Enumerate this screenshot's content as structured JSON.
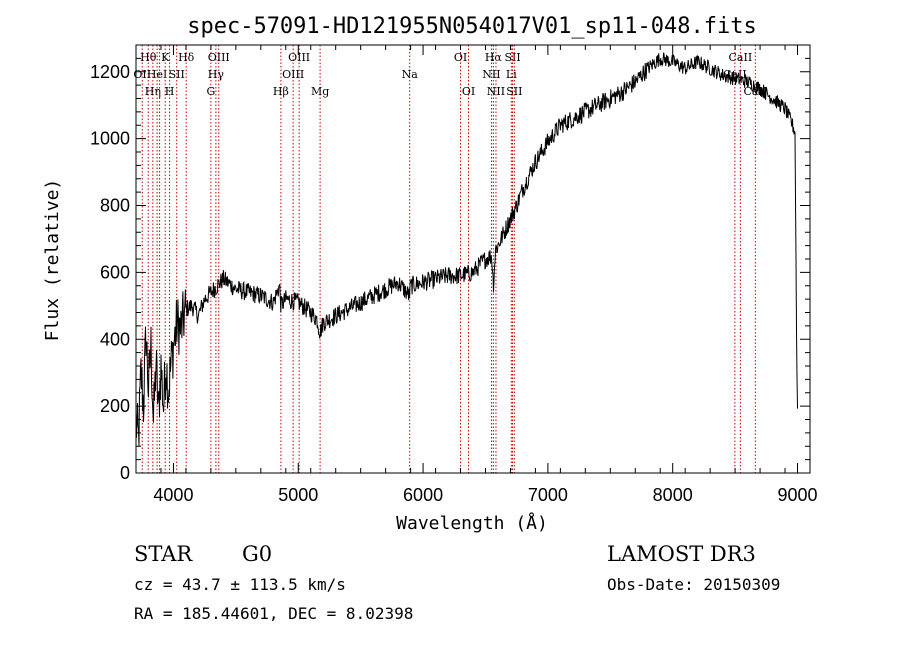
{
  "chart_data": {
    "type": "line",
    "title": "spec-57091-HD121955N054017V01_sp11-048.fits",
    "xlabel": "Wavelength (Å)",
    "ylabel": "Flux (relative)",
    "xlim": [
      3700,
      9100
    ],
    "ylim": [
      0,
      1280
    ],
    "x_ticks": [
      4000,
      5000,
      6000,
      7000,
      8000,
      9000
    ],
    "y_ticks": [
      0,
      200,
      400,
      600,
      800,
      1000,
      1200
    ],
    "x_tick_labels": [
      "4000",
      "5000",
      "6000",
      "7000",
      "8000",
      "9000"
    ],
    "y_tick_labels": [
      "0",
      "200",
      "400",
      "600",
      "800",
      "1000",
      "1200"
    ],
    "series": [
      {
        "name": "flux",
        "color": "#000000",
        "x": [
          3700,
          3720,
          3740,
          3760,
          3780,
          3800,
          3820,
          3840,
          3860,
          3880,
          3900,
          3920,
          3940,
          3960,
          3980,
          4000,
          4030,
          4060,
          4100,
          4150,
          4200,
          4250,
          4300,
          4350,
          4400,
          4500,
          4600,
          4700,
          4800,
          4850,
          4861,
          4900,
          5000,
          5100,
          5150,
          5175,
          5200,
          5300,
          5400,
          5500,
          5600,
          5700,
          5800,
          5890,
          5900,
          6000,
          6100,
          6200,
          6300,
          6400,
          6500,
          6550,
          6563,
          6580,
          6600,
          6650,
          6700,
          6750,
          6800,
          6900,
          7000,
          7100,
          7200,
          7300,
          7400,
          7500,
          7600,
          7700,
          7800,
          7900,
          8000,
          8100,
          8200,
          8300,
          8400,
          8500,
          8600,
          8700,
          8800,
          8900,
          8950,
          8980,
          8995,
          9000
        ],
        "values": [
          150,
          100,
          300,
          200,
          420,
          250,
          380,
          150,
          330,
          180,
          320,
          200,
          330,
          250,
          320,
          380,
          450,
          430,
          490,
          500,
          470,
          520,
          540,
          560,
          580,
          550,
          540,
          530,
          510,
          560,
          500,
          520,
          510,
          480,
          460,
          420,
          450,
          470,
          490,
          510,
          530,
          550,
          570,
          530,
          560,
          570,
          580,
          590,
          590,
          600,
          640,
          650,
          560,
          670,
          680,
          720,
          760,
          800,
          850,
          930,
          990,
          1040,
          1060,
          1080,
          1100,
          1120,
          1140,
          1170,
          1210,
          1240,
          1230,
          1210,
          1230,
          1210,
          1190,
          1180,
          1170,
          1150,
          1120,
          1090,
          1050,
          1020,
          300,
          200
        ]
      }
    ],
    "spectral_lines": [
      {
        "wavelength": 3750,
        "label": "OII",
        "row": 2
      },
      {
        "wavelength": 3798,
        "label": "Hθ",
        "row": 1
      },
      {
        "wavelength": 3835,
        "label": "Hη",
        "row": 3
      },
      {
        "wavelength": 3869,
        "label": "HeI",
        "row": 2
      },
      {
        "wavelength": 3889,
        "label": "",
        "row": 0
      },
      {
        "wavelength": 3934,
        "label": "K",
        "row": 1
      },
      {
        "wavelength": 3969,
        "label": "H",
        "row": 3
      },
      {
        "wavelength": 4026,
        "label": "SII",
        "row": 2
      },
      {
        "wavelength": 4102,
        "label": "Hδ",
        "row": 1
      },
      {
        "wavelength": 4300,
        "label": "G",
        "row": 3
      },
      {
        "wavelength": 4340,
        "label": "Hγ",
        "row": 2
      },
      {
        "wavelength": 4363,
        "label": "OIII",
        "row": 1
      },
      {
        "wavelength": 4861,
        "label": "Hβ",
        "row": 3
      },
      {
        "wavelength": 4959,
        "label": "OIII",
        "row": 2
      },
      {
        "wavelength": 5007,
        "label": "OIII",
        "row": 1
      },
      {
        "wavelength": 5175,
        "label": "Mg",
        "row": 3
      },
      {
        "wavelength": 5893,
        "label": "Na",
        "row": 2
      },
      {
        "wavelength": 6300,
        "label": "OI",
        "row": 1
      },
      {
        "wavelength": 6364,
        "label": "OI",
        "row": 3
      },
      {
        "wavelength": 6548,
        "label": "NII",
        "row": 2
      },
      {
        "wavelength": 6563,
        "label": "Hα",
        "row": 1
      },
      {
        "wavelength": 6584,
        "label": "NII",
        "row": 3
      },
      {
        "wavelength": 6707,
        "label": "Li",
        "row": 2
      },
      {
        "wavelength": 6717,
        "label": "SII",
        "row": 1
      },
      {
        "wavelength": 6731,
        "label": "SII",
        "row": 3
      },
      {
        "wavelength": 8498,
        "label": "CaII",
        "row": 2
      },
      {
        "wavelength": 8542,
        "label": "CaII",
        "row": 1
      },
      {
        "wavelength": 8662,
        "label": "CaII",
        "row": 3
      }
    ],
    "line_color": "#cc0000"
  },
  "info": {
    "object_class": "STAR",
    "subclass": "G0",
    "survey": "LAMOST DR3",
    "redshift": "cz = 43.7 ± 113.5 km/s",
    "obs_date": "Obs-Date: 20150309",
    "coords": "RA = 185.44601, DEC =   8.02398"
  }
}
